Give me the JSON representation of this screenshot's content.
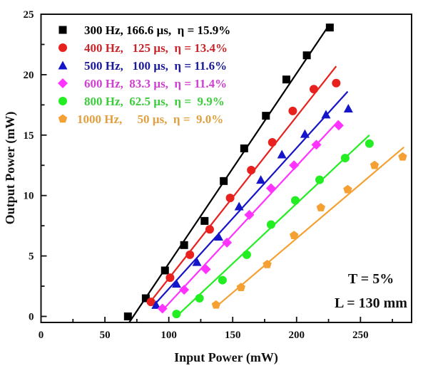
{
  "chart_data": {
    "type": "scatter",
    "title": "",
    "xlabel": "Input Power (mW)",
    "ylabel": "Output Power (mW)",
    "xlim": [
      0,
      290
    ],
    "ylim": [
      -0.5,
      25
    ],
    "xticks": [
      0,
      50,
      100,
      150,
      200,
      250
    ],
    "yticks": [
      0,
      5,
      10,
      15,
      20,
      25
    ],
    "grid": false,
    "legend_position": "top-left",
    "annotations": [
      "T = 5%",
      "L = 130 mm"
    ],
    "series": [
      {
        "name": "300 Hz, 166.6 µs,  η = 15.9%",
        "color": "#000000",
        "text_color": "#000000",
        "marker": "square",
        "x": [
          68,
          82,
          97,
          112,
          128,
          143,
          159,
          176,
          192,
          208,
          226
        ],
        "y": [
          0.0,
          1.5,
          3.8,
          5.9,
          7.9,
          11.2,
          13.9,
          16.6,
          19.6,
          21.6,
          23.9
        ],
        "fit": [
          [
            69,
            -0.5
          ],
          [
            226,
            24.2
          ]
        ]
      },
      {
        "name": "400 Hz,   125 µs,  η = 13.4%",
        "color": "#e8211e",
        "text_color": "#c8262a",
        "marker": "circle",
        "x": [
          86,
          101,
          116.5,
          132,
          148,
          164.5,
          181,
          197,
          213.5,
          231
        ],
        "y": [
          1.2,
          3.2,
          5.1,
          7.2,
          9.8,
          12.1,
          14.4,
          17.0,
          18.8,
          19.3
        ],
        "fit": [
          [
            84,
            1.0
          ],
          [
            231,
            20.7
          ]
        ]
      },
      {
        "name": "500 Hz,   100 µs,  η = 11.6%",
        "color": "#1414c8",
        "text_color": "#1a1a9a",
        "marker": "triangle",
        "x": [
          90,
          106,
          122,
          139,
          155,
          172,
          188.5,
          206.5,
          223,
          240.5
        ],
        "y": [
          0.95,
          2.7,
          4.5,
          6.6,
          9.1,
          11.3,
          13.4,
          15.1,
          16.7,
          17.2
        ],
        "fit": [
          [
            89,
            1.0
          ],
          [
            240,
            18.6
          ]
        ]
      },
      {
        "name": "600 Hz,  83.3 µs,  η = 11.4%",
        "color": "#ff33ff",
        "text_color": "#d040d0",
        "marker": "diamond",
        "x": [
          95,
          112,
          129,
          145.5,
          163,
          180,
          198,
          215.5,
          233
        ],
        "y": [
          0.65,
          2.2,
          3.9,
          6.1,
          8.4,
          10.6,
          12.5,
          14.2,
          15.8
        ],
        "fit": [
          [
            95,
            0.5
          ],
          [
            233,
            16.2
          ]
        ]
      },
      {
        "name": "800 Hz,  62.5 µs,  η =  9.9%",
        "color": "#22ee22",
        "text_color": "#3ccc3c",
        "marker": "circle",
        "x": [
          106,
          124,
          142,
          161,
          180,
          199,
          218,
          238,
          257
        ],
        "y": [
          0.2,
          1.5,
          3.0,
          5.1,
          7.6,
          9.6,
          11.3,
          13.1,
          14.3
        ],
        "fit": [
          [
            106,
            0.0
          ],
          [
            257,
            15.0
          ]
        ]
      },
      {
        "name": "1000 Hz,     50 µs,  η =  9.0%",
        "color": "#f5a033",
        "text_color": "#e0a040",
        "marker": "pentagon",
        "x": [
          137,
          156.5,
          177,
          198,
          219,
          240,
          261,
          283
        ],
        "y": [
          0.95,
          2.4,
          4.3,
          6.7,
          9.0,
          10.5,
          12.5,
          13.2
        ],
        "fit": [
          [
            137,
            0.8
          ],
          [
            284,
            14.0
          ]
        ]
      }
    ]
  }
}
